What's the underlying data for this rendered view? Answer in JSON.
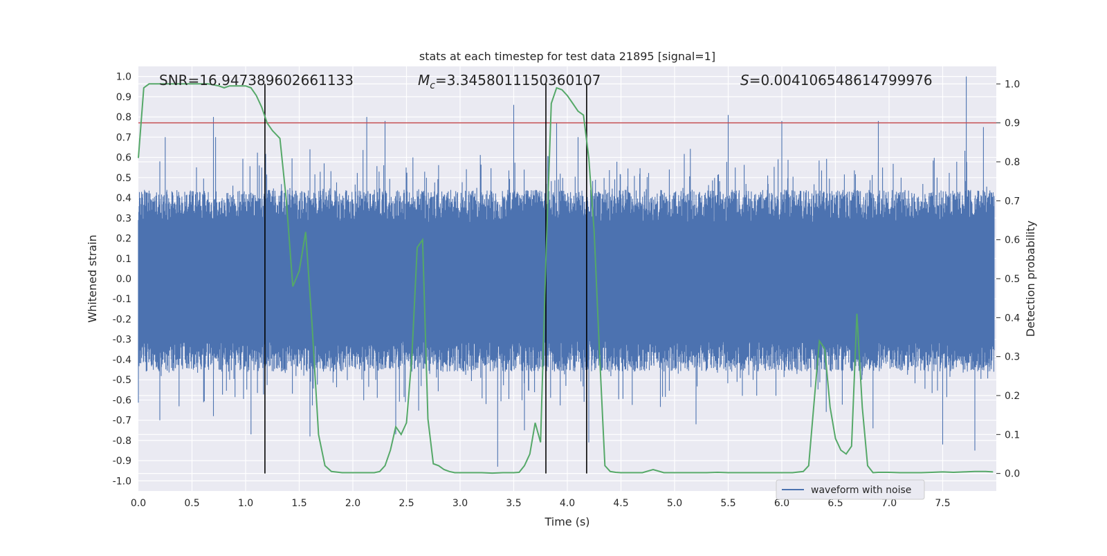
{
  "chart_data": {
    "type": "line",
    "title": "stats at each timestep for test data 21895 [signal=1]",
    "xlabel": "Time (s)",
    "ylabel": "Whitened strain",
    "y2label": "Detection probability",
    "xlim": [
      0.0,
      8.0
    ],
    "ylim": [
      -1.05,
      1.05
    ],
    "y2lim": [
      -0.045,
      1.045
    ],
    "xticks": [
      "0.0",
      "0.5",
      "1.0",
      "1.5",
      "2.0",
      "2.5",
      "3.0",
      "3.5",
      "4.0",
      "4.5",
      "5.0",
      "5.5",
      "6.0",
      "6.5",
      "7.0",
      "7.5"
    ],
    "yticks": [
      "1.0",
      "0.9",
      "0.8",
      "0.7",
      "0.6",
      "0.5",
      "0.4",
      "0.3",
      "0.2",
      "0.1",
      "0.0",
      "-0.1",
      "-0.2",
      "-0.3",
      "-0.4",
      "-0.5",
      "-0.6",
      "-0.7",
      "-0.8",
      "-0.9",
      "-1.0"
    ],
    "y2ticks": [
      "1.0",
      "0.9",
      "0.8",
      "0.7",
      "0.6",
      "0.5",
      "0.4",
      "0.3",
      "0.2",
      "0.1",
      "0.0"
    ],
    "grid": true,
    "legend_position": "bottom-right",
    "annotations": {
      "snr": "SNR=16.947389602661133",
      "mc_symbol": "M",
      "mc_sub": "c",
      "mc_value": "=3.3458011150360107",
      "s_symbol": "S",
      "s_value": "=0.004106548614799976"
    },
    "series": [
      {
        "name": "waveform with noise",
        "axis": "left",
        "color": "#4c72b0",
        "description": "dense noisy whitened strain series",
        "envelope_peaks_upper": [
          [
            0.2,
            0.58
          ],
          [
            0.25,
            0.7
          ],
          [
            0.7,
            0.8
          ],
          [
            0.72,
            0.7
          ],
          [
            1.15,
            0.55
          ],
          [
            1.6,
            0.64
          ],
          [
            2.13,
            0.8
          ],
          [
            2.3,
            0.78
          ],
          [
            2.56,
            0.6
          ],
          [
            3.5,
            0.86
          ],
          [
            3.9,
            0.77
          ],
          [
            4.1,
            0.7
          ],
          [
            5.5,
            0.81
          ],
          [
            6.0,
            0.78
          ],
          [
            6.9,
            0.78
          ],
          [
            7.72,
            1.0
          ],
          [
            7.88,
            0.75
          ]
        ],
        "envelope_peaks_lower": [
          [
            0.2,
            -0.7
          ],
          [
            0.7,
            -0.68
          ],
          [
            1.05,
            -0.77
          ],
          [
            1.6,
            -0.78
          ],
          [
            2.4,
            -0.77
          ],
          [
            3.35,
            -0.93
          ],
          [
            3.6,
            -0.75
          ],
          [
            4.2,
            -0.81
          ],
          [
            5.2,
            -0.72
          ],
          [
            6.85,
            -0.74
          ],
          [
            7.5,
            -0.82
          ],
          [
            7.8,
            -0.85
          ]
        ]
      },
      {
        "name": "",
        "axis": "right",
        "color": "#55a868",
        "x": [
          0.0,
          0.05,
          0.1,
          0.2,
          0.3,
          0.4,
          0.5,
          0.6,
          0.65,
          0.75,
          0.8,
          0.85,
          0.9,
          0.95,
          1.0,
          1.05,
          1.1,
          1.15,
          1.2,
          1.25,
          1.32,
          1.38,
          1.44,
          1.5,
          1.56,
          1.62,
          1.68,
          1.74,
          1.8,
          1.9,
          2.0,
          2.1,
          2.2,
          2.25,
          2.3,
          2.35,
          2.4,
          2.45,
          2.5,
          2.55,
          2.6,
          2.65,
          2.7,
          2.75,
          2.8,
          2.85,
          2.9,
          2.95,
          3.0,
          3.1,
          3.2,
          3.3,
          3.4,
          3.5,
          3.55,
          3.6,
          3.65,
          3.7,
          3.75,
          3.8,
          3.85,
          3.9,
          3.95,
          4.0,
          4.05,
          4.1,
          4.15,
          4.2,
          4.25,
          4.3,
          4.35,
          4.4,
          4.45,
          4.5,
          4.6,
          4.7,
          4.8,
          4.9,
          5.0,
          5.1,
          5.2,
          5.3,
          5.4,
          5.5,
          5.6,
          5.7,
          5.8,
          5.9,
          6.0,
          6.1,
          6.2,
          6.25,
          6.3,
          6.35,
          6.4,
          6.45,
          6.5,
          6.55,
          6.6,
          6.65,
          6.7,
          6.75,
          6.8,
          6.85,
          6.9,
          7.0,
          7.1,
          7.2,
          7.3,
          7.4,
          7.5,
          7.6,
          7.7,
          7.8,
          7.9,
          7.97
        ],
        "y": [
          0.81,
          0.99,
          1.0,
          1.0,
          1.0,
          1.0,
          1.0,
          1.0,
          1.0,
          0.995,
          0.99,
          0.995,
          0.995,
          0.995,
          0.995,
          0.99,
          0.97,
          0.94,
          0.9,
          0.88,
          0.86,
          0.7,
          0.48,
          0.52,
          0.62,
          0.38,
          0.1,
          0.02,
          0.005,
          0.002,
          0.002,
          0.002,
          0.002,
          0.005,
          0.02,
          0.06,
          0.12,
          0.1,
          0.13,
          0.3,
          0.58,
          0.6,
          0.14,
          0.025,
          0.02,
          0.01,
          0.005,
          0.002,
          0.002,
          0.002,
          0.002,
          0.001,
          0.002,
          0.002,
          0.003,
          0.02,
          0.05,
          0.13,
          0.08,
          0.55,
          0.95,
          0.99,
          0.985,
          0.97,
          0.95,
          0.93,
          0.92,
          0.81,
          0.62,
          0.31,
          0.02,
          0.005,
          0.003,
          0.002,
          0.002,
          0.002,
          0.01,
          0.002,
          0.002,
          0.002,
          0.002,
          0.002,
          0.003,
          0.002,
          0.002,
          0.002,
          0.002,
          0.002,
          0.002,
          0.002,
          0.005,
          0.02,
          0.18,
          0.34,
          0.32,
          0.17,
          0.09,
          0.06,
          0.05,
          0.07,
          0.41,
          0.17,
          0.02,
          0.002,
          0.003,
          0.003,
          0.002,
          0.002,
          0.002,
          0.003,
          0.004,
          0.003,
          0.004,
          0.005,
          0.005,
          0.004
        ]
      }
    ],
    "threshold": {
      "axis": "right",
      "value": 0.9,
      "color": "#c44e52"
    },
    "vertical_lines_x": [
      1.18,
      3.8,
      4.18
    ],
    "vertical_line_color": "#000000"
  }
}
